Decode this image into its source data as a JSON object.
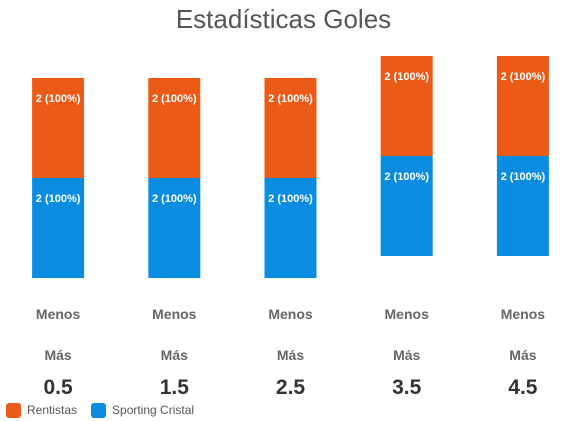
{
  "chart_data": {
    "type": "bar",
    "stacked": true,
    "title": "Estadísticas Goles",
    "categories": [
      {
        "lines": [
          "Menos",
          "Más"
        ],
        "value": "0.5"
      },
      {
        "lines": [
          "Menos",
          "Más"
        ],
        "value": "1.5"
      },
      {
        "lines": [
          "Menos",
          "Más"
        ],
        "value": "2.5"
      },
      {
        "lines": [
          "Menos",
          "Más"
        ],
        "value": "3.5"
      },
      {
        "lines": [
          "Menos",
          "Más"
        ],
        "value": "4.5"
      }
    ],
    "series": [
      {
        "name": "Sporting Cristal",
        "color": "#0a8de0",
        "values": [
          2,
          2,
          2,
          2,
          2
        ],
        "labels": [
          "2 (100%)",
          "2 (100%)",
          "2 (100%)",
          "2 (100%)",
          "2 (100%)"
        ]
      },
      {
        "name": "Rentistas",
        "color": "#ec5a17",
        "values": [
          2,
          2,
          2,
          2,
          2
        ],
        "labels": [
          "2 (100%)",
          "2 (100%)",
          "2 (100%)",
          "2 (100%)",
          "2 (100%)"
        ]
      }
    ],
    "xlabel": "",
    "ylabel": "",
    "grid": false,
    "legend_position": "bottom-left"
  }
}
